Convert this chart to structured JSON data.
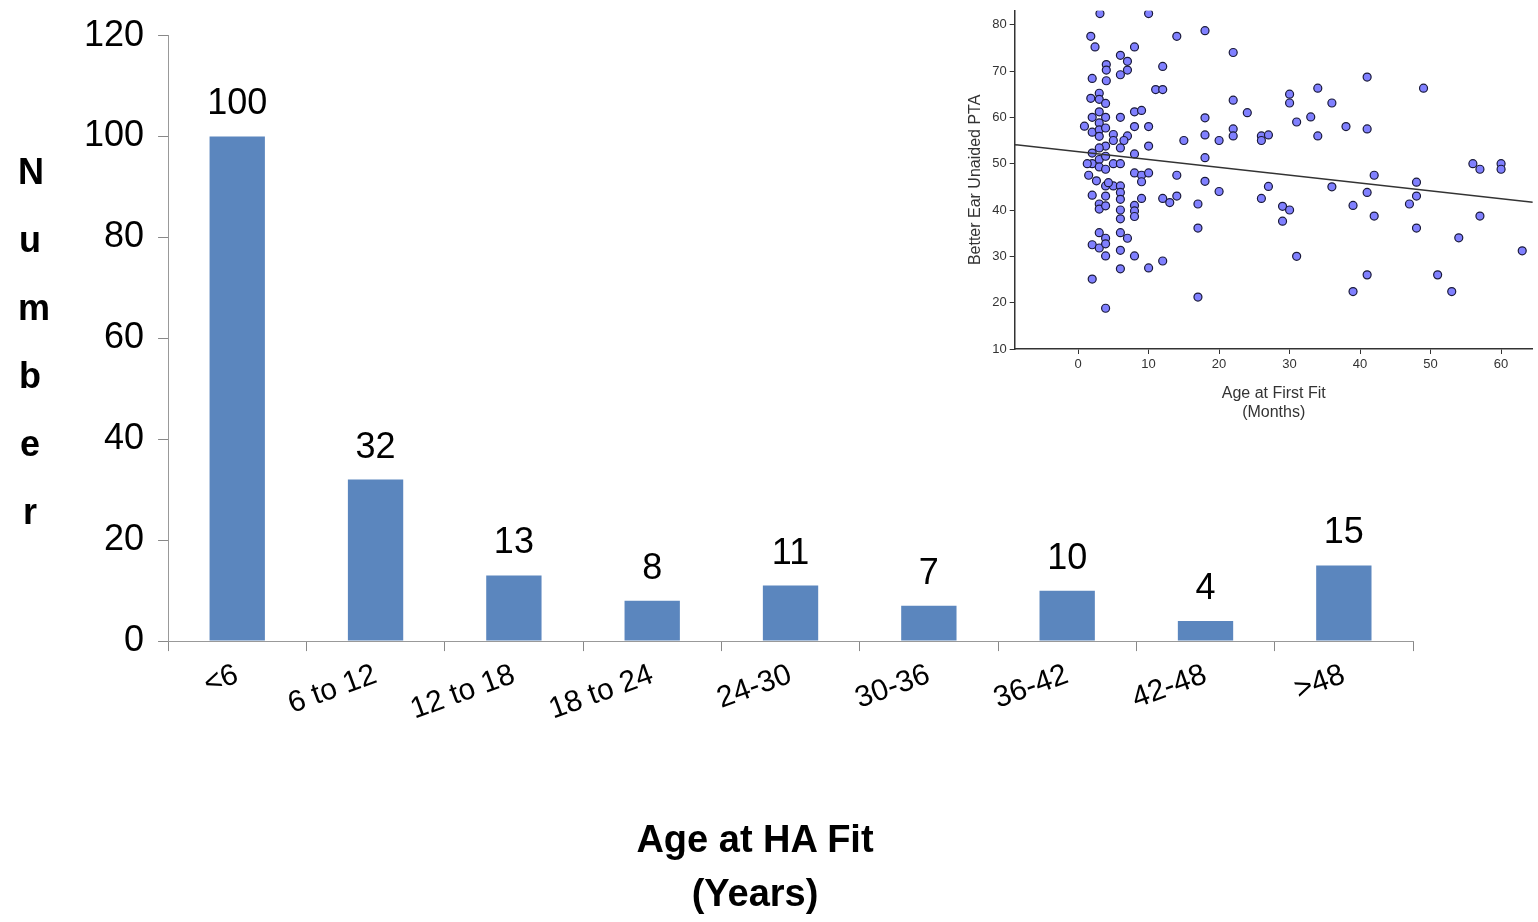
{
  "chart_data": [
    {
      "type": "bar",
      "xlabel": "Age at HA Fit\n(Years)",
      "ylabel": "Number",
      "categories": [
        "<6",
        "6 to 12",
        "12 to 18",
        "18 to 24",
        "24-30",
        "30-36",
        "36-42",
        "42-48",
        ">48"
      ],
      "values": [
        100,
        32,
        13,
        8,
        11,
        7,
        10,
        4,
        15
      ],
      "color": "#5b86be",
      "ylim": [
        0,
        120
      ],
      "yticks": [
        0,
        20,
        40,
        60,
        80,
        100,
        120
      ],
      "data_labels": true
    },
    {
      "type": "scatter",
      "xlabel": "Age at First Fit\n(Months)",
      "ylabel": "Better Ear Unaided PTA",
      "xlim": [
        -9,
        64.5
      ],
      "xticks": [
        0,
        10,
        20,
        30,
        40,
        50,
        60
      ],
      "ylim": [
        10,
        83
      ],
      "yticks": [
        10,
        20,
        30,
        40,
        50,
        60,
        70,
        80
      ],
      "marker": "circle",
      "series": [
        {
          "color": "#8080ff",
          "x": [
            3.1,
            10,
            1.8,
            14,
            2.4,
            8,
            6,
            4,
            4,
            7,
            7,
            12,
            2,
            4,
            6,
            11,
            12,
            1.8,
            3,
            3,
            3.9,
            2,
            3,
            3.9,
            3,
            0.9,
            2,
            3,
            3,
            3.9,
            5,
            6,
            8,
            9,
            8,
            10,
            7,
            6.5,
            15,
            5,
            3.9,
            3,
            2,
            6,
            8,
            10,
            2,
            3,
            3.9,
            5,
            6,
            1.3,
            3,
            3.9,
            1.5,
            2.6,
            8,
            9,
            9,
            10,
            14,
            3.9,
            5,
            6,
            4.3,
            2,
            3,
            3.9,
            6,
            6,
            3,
            3.9,
            6,
            8,
            8,
            9,
            8,
            6,
            12,
            13,
            3,
            3.9,
            2,
            3,
            3.9,
            6,
            7,
            3.9,
            6,
            8,
            6,
            10,
            12,
            2,
            3.9,
            18,
            22,
            41,
            49,
            34,
            30,
            30,
            22,
            36,
            18,
            24,
            31,
            33,
            38,
            41,
            34,
            22,
            22,
            18,
            20,
            26,
            26,
            27,
            18,
            18,
            20,
            27,
            26,
            14,
            17,
            17,
            29,
            30,
            29,
            36,
            42,
            41,
            39,
            42,
            48,
            48,
            47,
            48,
            56,
            57,
            60,
            60,
            57,
            54,
            63,
            31,
            41,
            51,
            39,
            53,
            17
          ],
          "values": [
            82.4,
            82.4,
            77.5,
            77.5,
            75.2,
            75.2,
            73.4,
            71.4,
            70.2,
            72.1,
            70.2,
            71,
            68.4,
            67.9,
            69.2,
            66,
            66,
            64.1,
            65.2,
            63.9,
            63,
            60,
            61.2,
            60,
            58.8,
            58.1,
            56.8,
            57.3,
            55.9,
            57.7,
            56.3,
            60,
            61.2,
            61.5,
            58,
            58,
            56,
            55,
            55,
            55,
            53.8,
            53.4,
            52.3,
            53.4,
            52.1,
            53.8,
            50,
            50.9,
            51.6,
            50,
            50,
            50,
            49.3,
            48.8,
            47.5,
            46.3,
            48,
            47.5,
            46.1,
            48,
            47.5,
            45.2,
            45.2,
            45.2,
            45.9,
            43.2,
            41.3,
            43,
            43.8,
            42.3,
            40.2,
            40.9,
            40,
            41,
            39.8,
            42.5,
            38.6,
            38.1,
            42.5,
            41.6,
            35.1,
            33.9,
            32.5,
            31.8,
            32.7,
            35.1,
            33.9,
            30.1,
            31.3,
            30.1,
            27.3,
            27.5,
            29,
            25.1,
            18.8,
            78.7,
            74,
            68.7,
            66.3,
            66.3,
            65,
            63.1,
            63.7,
            63.1,
            59.9,
            61,
            59,
            60.1,
            58,
            57.5,
            56,
            57.5,
            56,
            56.2,
            55,
            56,
            55,
            56.2,
            51.3,
            46.2,
            44,
            45.1,
            42.5,
            43,
            41.3,
            36.1,
            40.8,
            40,
            37.6,
            45,
            47.5,
            43.8,
            41,
            38.7,
            46,
            43,
            41.3,
            36.1,
            50,
            48.8,
            50,
            48.8,
            38.7,
            34,
            31.2,
            30,
            26,
            26,
            22.4,
            22.4,
            21.2
          ]
        },
        {
          "type": "line",
          "marker": "none",
          "color": "#333333",
          "x": [
            -9,
            64.5
          ],
          "values": [
            54.1,
            41.7
          ]
        }
      ]
    }
  ]
}
